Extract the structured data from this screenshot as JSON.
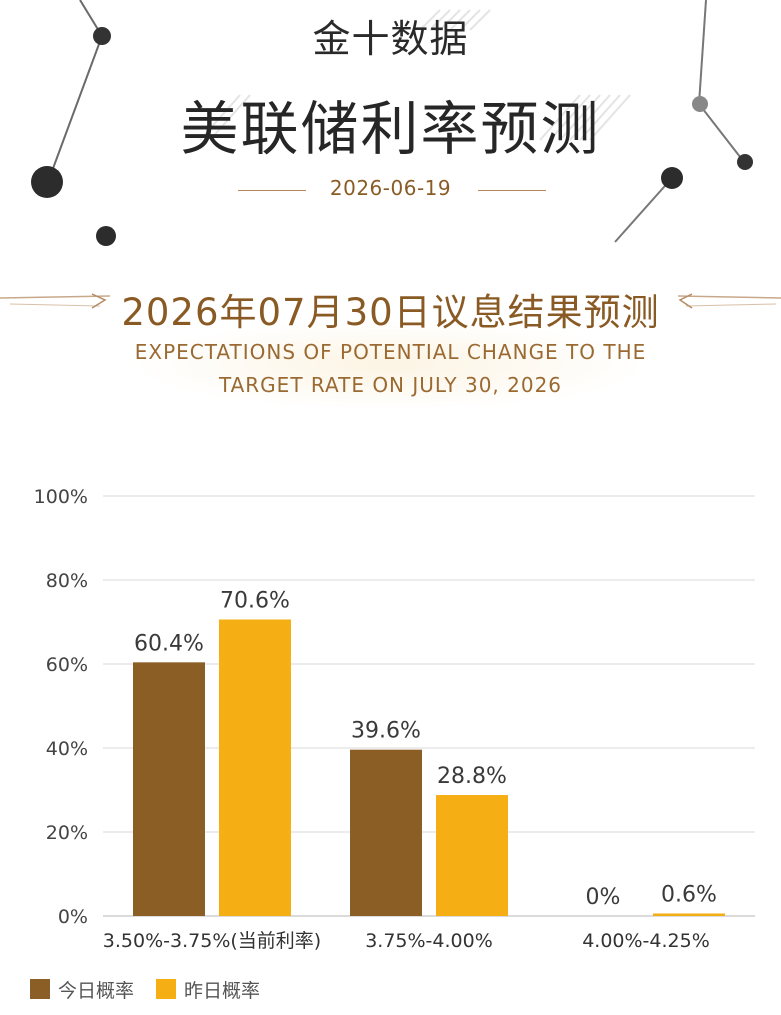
{
  "header": {
    "brand": "金十数据",
    "title": "美联储利率预测",
    "date": "2026-06-19"
  },
  "section": {
    "title": "2026年07月30日议息结果预测",
    "subtitle_line1": "EXPECTATIONS OF POTENTIAL CHANGE TO THE",
    "subtitle_line2": "TARGET RATE ON JULY 30, 2026"
  },
  "colors": {
    "today": "#8B5E26",
    "yesterday": "#F5AE13",
    "accent_text": "#8A5A24"
  },
  "chart_data": {
    "type": "bar",
    "categories": [
      "3.50%-3.75%(当前利率)",
      "3.75%-4.00%",
      "4.00%-4.25%"
    ],
    "series": [
      {
        "name": "今日概率",
        "values": [
          60.4,
          39.6,
          0
        ],
        "labels": [
          "60.4%",
          "39.6%",
          "0%"
        ]
      },
      {
        "name": "昨日概率",
        "values": [
          70.6,
          28.8,
          0.6
        ],
        "labels": [
          "70.6%",
          "28.8%",
          "0.6%"
        ]
      }
    ],
    "ylim": [
      0,
      100
    ],
    "yticks": [
      "0%",
      "20%",
      "40%",
      "60%",
      "80%",
      "100%"
    ],
    "grid": true,
    "legend": "bottom-left"
  }
}
